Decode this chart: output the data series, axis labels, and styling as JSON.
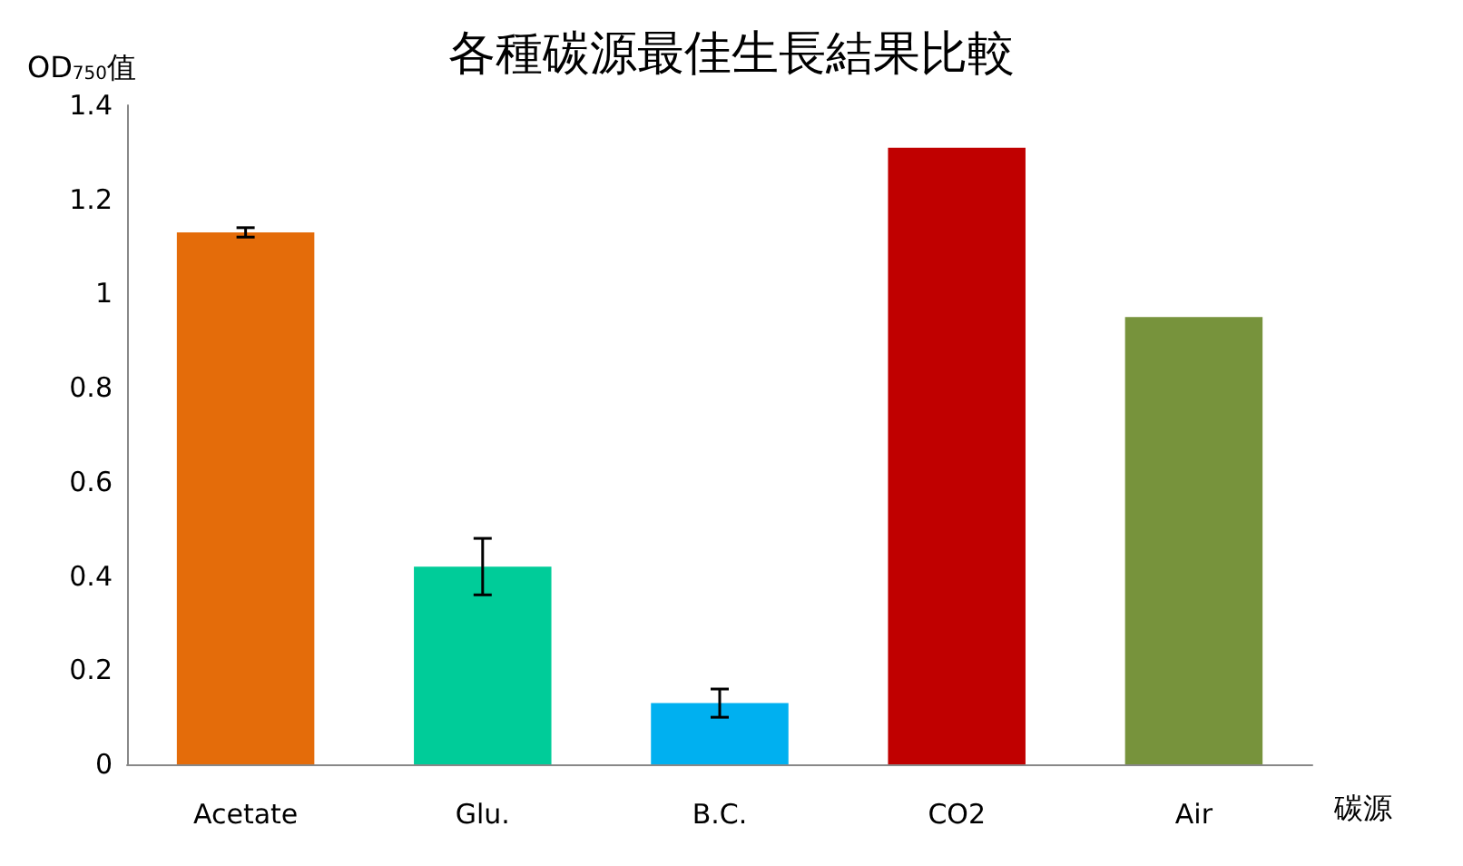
{
  "chart_data": {
    "type": "bar",
    "title": "各種碳源最佳生長結果比較",
    "ylabel": "OD$_{750}$值",
    "xlabel": "碳源",
    "categories": [
      "Acetate",
      "Glu.",
      "B.C.",
      "CO2",
      "Air"
    ],
    "values": [
      1.13,
      0.42,
      0.13,
      1.31,
      0.95
    ],
    "errors": [
      0.01,
      0.06,
      0.03,
      null,
      null
    ],
    "colors": [
      "#e46c0a",
      "#00cc99",
      "#00b0f0",
      "#c00000",
      "#77933c"
    ],
    "ylim": [
      0,
      1.4
    ],
    "yticks": [
      0,
      0.2,
      0.4,
      0.6,
      0.8,
      1,
      1.2,
      1.4
    ],
    "grid": false
  }
}
